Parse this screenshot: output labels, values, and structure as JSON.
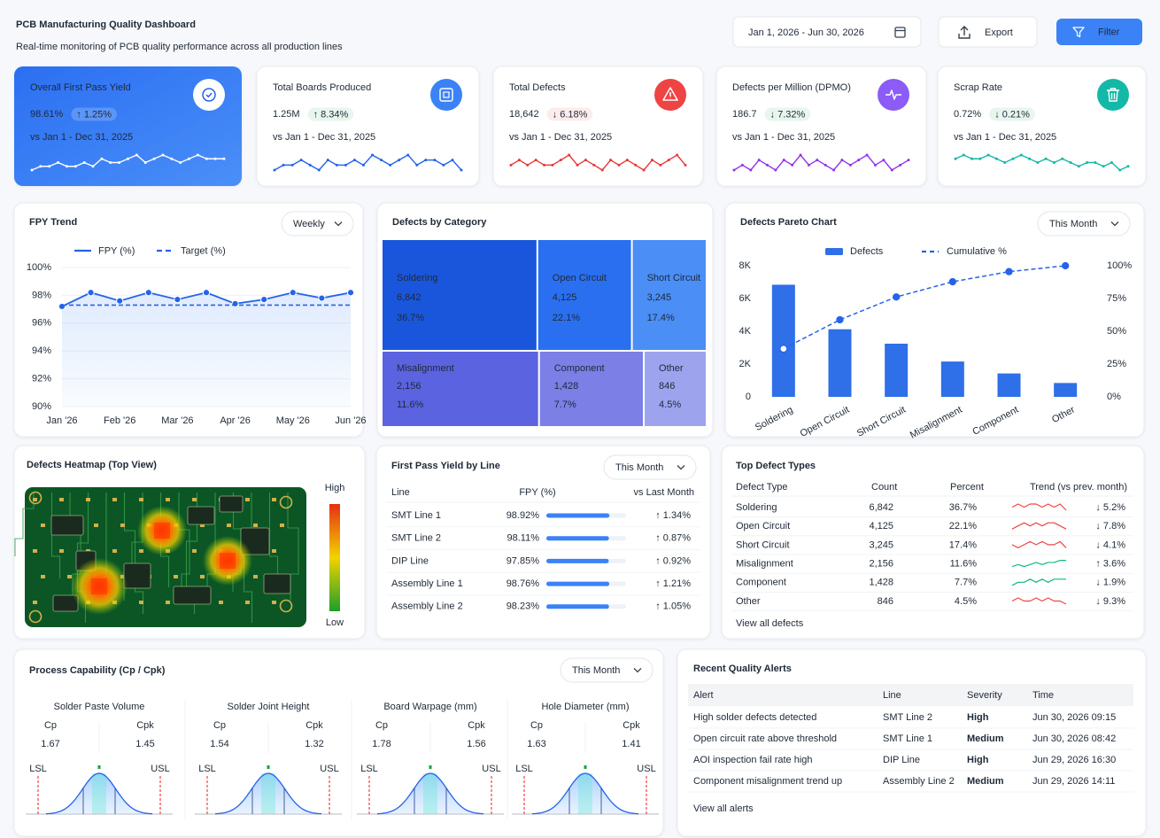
{
  "header": {
    "title": "PCB Manufacturing Quality Dashboard",
    "subtitle": "Real-time monitoring of PCB quality performance across all production lines",
    "date_range": "Jan 1, 2026 - Jun 30, 2026",
    "export": "Export",
    "filter": "Filter"
  },
  "kpis": [
    {
      "label": "Overall First Pass Yield",
      "value": "98.61%",
      "change": "↑ 1.25%",
      "period": "vs Jan 1 - Dec 31, 2025",
      "change_color": "#bbf7d0",
      "badge_fill": "#5b95f7",
      "icon_color": "#ffffff",
      "trend_color": "#ffffff",
      "trend": [
        3,
        4,
        4,
        5,
        4,
        4,
        5,
        4,
        6,
        5,
        5,
        6,
        7,
        5,
        6,
        7,
        6,
        5,
        6,
        7,
        6,
        6,
        6
      ]
    },
    {
      "label": "Total Boards Produced",
      "value": "1.25M",
      "change": "↑ 8.34%",
      "period": "vs Jan 1 - Dec 31, 2025",
      "change_color": "#16a34a",
      "badge_fill": "#e8f6ee",
      "icon_color": "#3b82f6",
      "trend_color": "#2563eb",
      "trend": [
        4,
        5,
        5,
        6,
        5,
        4,
        6,
        5,
        5,
        6,
        5,
        7,
        6,
        5,
        6,
        7,
        5,
        6,
        6,
        5,
        6,
        4
      ]
    },
    {
      "label": "Total Defects",
      "value": "18,642",
      "change": "↓ 6.18%",
      "period": "vs Jan 1 - Dec 31, 2025",
      "change_color": "#dc2626",
      "badge_fill": "#fdecec",
      "icon_color": "#ef4444",
      "trend_color": "#e53935",
      "trend": [
        5,
        6,
        5,
        6,
        5,
        5,
        6,
        7,
        5,
        6,
        5,
        4,
        6,
        5,
        6,
        5,
        4,
        6,
        5,
        6,
        7,
        5
      ]
    },
    {
      "label": "Defects per Million (DPMO)",
      "value": "186.7",
      "change": "↓ 7.32%",
      "period": "vs Jan 1 - Dec 31, 2025",
      "change_color": "#16a34a",
      "badge_fill": "#e8f6ee",
      "icon_color": "#8b5cf6",
      "trend_color": "#9333ea",
      "trend": [
        4,
        5,
        4,
        6,
        5,
        4,
        6,
        5,
        7,
        5,
        6,
        5,
        4,
        6,
        5,
        6,
        7,
        5,
        6,
        4,
        5,
        6
      ]
    },
    {
      "label": "Scrap Rate",
      "value": "0.72%",
      "change": "↓ 0.21%",
      "period": "vs Jan 1 - Dec 31, 2025",
      "change_color": "#16a34a",
      "badge_fill": "#e8f6ee",
      "icon_color": "#14b8a6",
      "trend_color": "#14b8a6",
      "trend": [
        6,
        7,
        6,
        6,
        7,
        6,
        5,
        6,
        7,
        6,
        5,
        6,
        5,
        6,
        5,
        4,
        5,
        5,
        4,
        5,
        3,
        4
      ]
    }
  ],
  "fpy_trend": {
    "type": "line",
    "title": "FPY Trend",
    "period": "Weekly",
    "categories": [
      "Jan '26",
      null,
      "Feb '26",
      null,
      "Mar '26",
      null,
      "Apr '26",
      null,
      "May '26",
      null,
      "Jun '26"
    ],
    "series": [
      {
        "name": "FPY (%)",
        "color": "#2563eb",
        "line_style": "solid",
        "values": [
          97.2,
          98.2,
          97.6,
          98.2,
          97.7,
          98.2,
          97.4,
          97.7,
          98.2,
          97.8,
          98.2
        ]
      },
      {
        "name": "Target (%)",
        "color": "#2563eb",
        "line_style": "dashed",
        "values": [
          97.3,
          97.3,
          97.3,
          97.3,
          97.3,
          97.3,
          97.3,
          97.3,
          97.3,
          97.3,
          97.3
        ]
      }
    ],
    "ylim": [
      90,
      100
    ],
    "yticks": [
      {
        "value": 90,
        "label": "90%"
      },
      {
        "value": 92,
        "label": "92%"
      },
      {
        "value": 94,
        "label": "94%"
      },
      {
        "value": 96,
        "label": "96%"
      },
      {
        "value": 98,
        "label": "98%"
      },
      {
        "value": 100,
        "label": "100%"
      }
    ],
    "grid": true
  },
  "defects_by_category": {
    "type": "treemap",
    "title": "Defects by Category",
    "categories": [
      "Soldering",
      "Open Circuit",
      "Short Circuit",
      "Misalignment",
      "Component",
      "Other"
    ],
    "values": [
      6842,
      4125,
      3245,
      2156,
      1428,
      846
    ],
    "value_labels": [
      "6,842",
      "4,125",
      "3,245",
      "2,156",
      "1,428",
      "846"
    ],
    "percents": [
      36.7,
      22.1,
      17.4,
      11.6,
      7.7,
      4.5
    ],
    "percent_labels": [
      "36.7%",
      "22.1%",
      "17.4%",
      "11.6%",
      "7.7%",
      "4.5%"
    ],
    "colors": [
      "#1a56db",
      "#2a6ff0",
      "#4b8ef5",
      "#5b63e0",
      "#7b7fe6",
      "#9ea3ee"
    ]
  },
  "pareto": {
    "type": "bar",
    "title": "Defects Pareto Chart",
    "period": "This Month",
    "categories": [
      "Soldering",
      "Open Circuit",
      "Short Circuit",
      "Misalignment",
      "Component",
      "Other"
    ],
    "series": [
      {
        "name": "Defects",
        "color": "#2f6fe8",
        "values": [
          6842,
          4125,
          3245,
          2156,
          1428,
          846
        ]
      },
      {
        "name": "Cumulative %",
        "color": "#2563eb",
        "axis": "y2",
        "values": [
          36.7,
          58.8,
          76.2,
          87.8,
          95.5,
          100
        ]
      }
    ],
    "ylim": [
      0,
      8000
    ],
    "yticks": [
      0,
      {
        "value": 2000,
        "label": "2K"
      },
      {
        "value": 4000,
        "label": "4K"
      },
      {
        "value": 6000,
        "label": "6K"
      },
      {
        "value": 8000,
        "label": "8K"
      }
    ],
    "y2lim": [
      0,
      100
    ],
    "y2ticks": [
      {
        "value": 0,
        "label": "0%"
      },
      {
        "value": 25,
        "label": "25%"
      },
      {
        "value": 50,
        "label": "50%"
      },
      {
        "value": 75,
        "label": "75%"
      },
      {
        "value": 100,
        "label": "100%"
      }
    ],
    "grid": false
  },
  "heatmap": {
    "title": "Defects Heatmap (Top View)",
    "high": "High",
    "low": "Low"
  },
  "fpy_by_line": {
    "title": "First Pass Yield by Line",
    "period": "This Month",
    "columns": [
      "Line",
      "FPY (%)",
      "vs Last Month"
    ],
    "rows": [
      {
        "line": "SMT Line 1",
        "fpy": 98.92,
        "fpy_label": "98.92%",
        "change": "↑ 1.34%"
      },
      {
        "line": "SMT Line 2",
        "fpy": 98.11,
        "fpy_label": "98.11%",
        "change": "↑ 0.87%"
      },
      {
        "line": "DIP Line",
        "fpy": 97.85,
        "fpy_label": "97.85%",
        "change": "↑ 0.92%"
      },
      {
        "line": "Assembly Line 1",
        "fpy": 98.76,
        "fpy_label": "98.76%",
        "change": "↑ 1.21%"
      },
      {
        "line": "Assembly Line 2",
        "fpy": 98.23,
        "fpy_label": "98.23%",
        "change": "↑ 1.05%"
      }
    ],
    "bar_color": "#3b82f6",
    "change_color": "#16a34a"
  },
  "top_defect_types": {
    "title": "Top Defect Types",
    "columns": [
      "Defect Type",
      "Count",
      "Percent",
      "Trend (vs prev. month)"
    ],
    "rows": [
      {
        "type": "Soldering",
        "count": "6,842",
        "percent": "36.7%",
        "trend": [
          5,
          6,
          5,
          6,
          6,
          5,
          6,
          5,
          6,
          4
        ],
        "trend_color": "#ef4444",
        "change": "↓ 5.2%",
        "change_color": "#dc2626"
      },
      {
        "type": "Open Circuit",
        "count": "4,125",
        "percent": "22.1%",
        "trend": [
          4,
          5,
          6,
          5,
          6,
          5,
          6,
          6,
          5,
          4
        ],
        "trend_color": "#ef4444",
        "change": "↓ 7.8%",
        "change_color": "#dc2626"
      },
      {
        "type": "Short Circuit",
        "count": "3,245",
        "percent": "17.4%",
        "trend": [
          5,
          4,
          5,
          6,
          5,
          6,
          5,
          5,
          6,
          4
        ],
        "trend_color": "#ef4444",
        "change": "↓ 4.1%",
        "change_color": "#dc2626"
      },
      {
        "type": "Misalignment",
        "count": "2,156",
        "percent": "11.6%",
        "trend": [
          3,
          4,
          3,
          4,
          5,
          4,
          5,
          5,
          6,
          6
        ],
        "trend_color": "#10b981",
        "change": "↑ 3.6%",
        "change_color": "#16a34a"
      },
      {
        "type": "Component",
        "count": "1,428",
        "percent": "7.7%",
        "trend": [
          3,
          4,
          4,
          5,
          4,
          5,
          4,
          5,
          5,
          5
        ],
        "trend_color": "#10b981",
        "change": "↓ 1.9%",
        "change_color": "#16a34a"
      },
      {
        "type": "Other",
        "count": "846",
        "percent": "4.5%",
        "trend": [
          5,
          6,
          5,
          5,
          6,
          5,
          6,
          5,
          5,
          4
        ],
        "trend_color": "#ef4444",
        "change": "↓ 9.3%",
        "change_color": "#dc2626"
      }
    ],
    "link": "View all defects"
  },
  "process_capability": {
    "title": "Process Capability (Cp / Cpk)",
    "period": "This Month",
    "cp_label": "Cp",
    "cpk_label": "Cpk",
    "lsl_label": "LSL",
    "usl_label": "USL",
    "items": [
      {
        "name": "Solder Paste Volume",
        "cp": 1.67,
        "cpk": 1.45
      },
      {
        "name": "Solder Joint Height",
        "cp": 1.54,
        "cpk": 1.32
      },
      {
        "name": "Board Warpage (mm)",
        "cp": 1.78,
        "cpk": 1.56
      },
      {
        "name": "Hole Diameter (mm)",
        "cp": 1.63,
        "cpk": 1.41
      }
    ],
    "value_color": "#16a34a"
  },
  "alerts": {
    "title": "Recent Quality Alerts",
    "columns": [
      "Alert",
      "Line",
      "Severity",
      "Time"
    ],
    "rows": [
      {
        "alert": "High solder defects detected",
        "line": "SMT Line 2",
        "severity": "High",
        "severity_color": "#dc2626",
        "time": "Jun 30, 2026 09:15"
      },
      {
        "alert": "Open circuit rate above threshold",
        "line": "SMT Line 1",
        "severity": "Medium",
        "severity_color": "#f59e0b",
        "time": "Jun 30, 2026 08:42"
      },
      {
        "alert": "AOI inspection fail rate high",
        "line": "DIP Line",
        "severity": "High",
        "severity_color": "#dc2626",
        "time": "Jun 29, 2026 16:30"
      },
      {
        "alert": "Component misalignment trend up",
        "line": "Assembly Line 2",
        "severity": "Medium",
        "severity_color": "#f59e0b",
        "time": "Jun 29, 2026 14:11"
      }
    ],
    "link": "View all alerts"
  }
}
